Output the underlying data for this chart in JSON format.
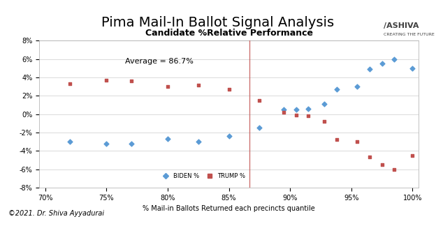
{
  "title": "Pima Mail-In Ballot Signal Analysis",
  "inner_title": "Candidate %Relative Performance",
  "xlabel": "% Mail-in Ballots Returned each precincts quantile",
  "annotation": "Average = 86.7%",
  "vline_x": 0.867,
  "copyright": "©2021. Dr. Shiva Ayyadurai",
  "biden_x": [
    0.72,
    0.75,
    0.77,
    0.8,
    0.825,
    0.85,
    0.875,
    0.895,
    0.905,
    0.915,
    0.928,
    0.938,
    0.955,
    0.965,
    0.975,
    0.985,
    1.0
  ],
  "biden_y": [
    -3.0,
    -3.2,
    -3.2,
    -2.7,
    -3.0,
    -2.4,
    -1.5,
    0.5,
    0.5,
    0.6,
    1.1,
    2.7,
    3.0,
    4.9,
    5.5,
    6.0,
    5.0
  ],
  "trump_x": [
    0.72,
    0.75,
    0.77,
    0.8,
    0.825,
    0.85,
    0.875,
    0.895,
    0.905,
    0.915,
    0.928,
    0.938,
    0.955,
    0.965,
    0.975,
    0.985,
    1.0
  ],
  "trump_y": [
    3.3,
    3.7,
    3.6,
    3.0,
    3.2,
    2.7,
    1.5,
    0.2,
    -0.1,
    -0.2,
    -0.8,
    -2.8,
    -3.0,
    -4.7,
    -5.5,
    -6.0,
    -4.5
  ],
  "biden_color": "#5b9bd5",
  "trump_color": "#c0504d",
  "bg_color": "#f2f2f2",
  "plot_bg": "#ffffff",
  "ylim": [
    -8,
    8
  ],
  "xlim": [
    0.695,
    1.005
  ],
  "xticks": [
    0.7,
    0.75,
    0.8,
    0.85,
    0.9,
    0.95,
    1.0
  ],
  "yticks": [
    -8,
    -6,
    -4,
    -2,
    0,
    2,
    4,
    6,
    8
  ]
}
